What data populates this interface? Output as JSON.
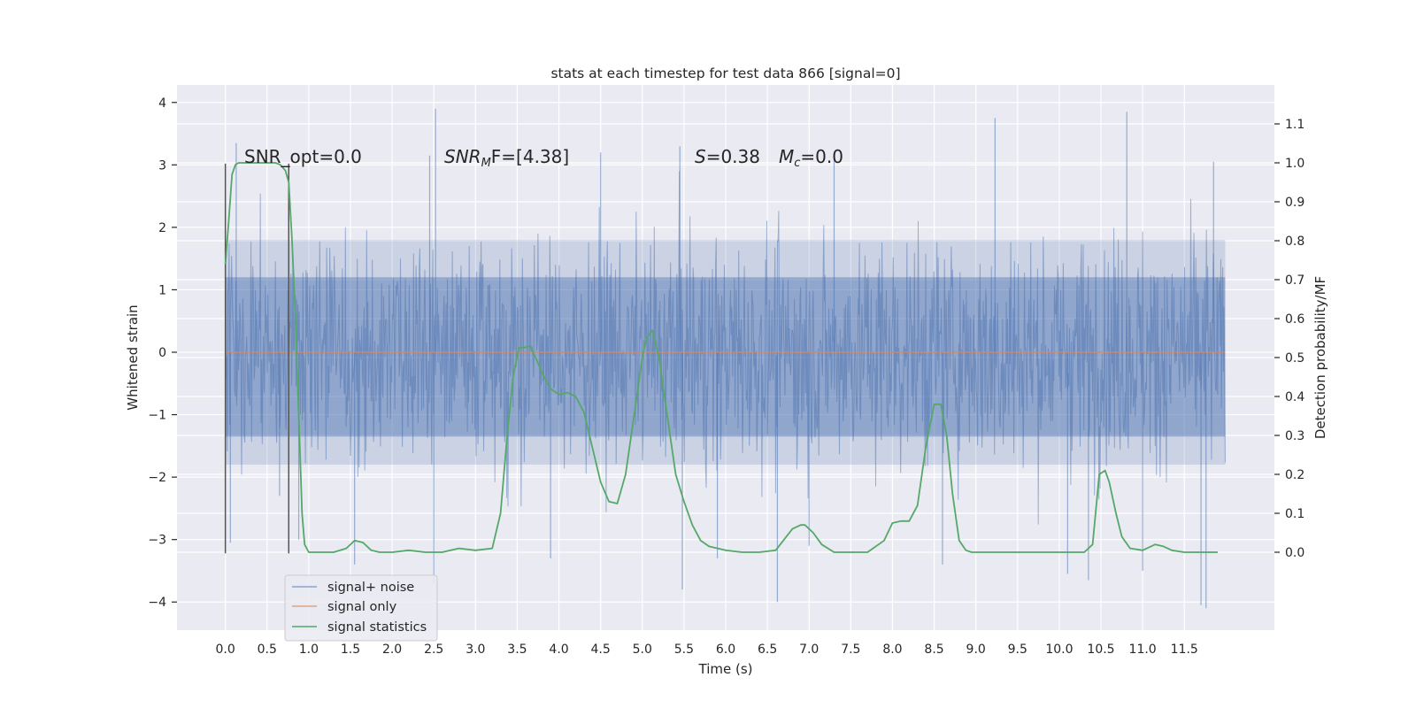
{
  "chart_data": {
    "type": "line",
    "title": "stats at each timestep for test data 866 [signal=0]",
    "xlabel": "Time (s)",
    "ylabel_left": "Whitened strain",
    "ylabel_right": "Detection probability/MF",
    "xlim": [
      -0.58,
      12.58
    ],
    "ylim_left": [
      -4.45,
      4.28
    ],
    "ylim_right": [
      -0.2,
      1.2
    ],
    "x_ticks": [
      "0.0",
      "0.5",
      "1.0",
      "1.5",
      "2.0",
      "2.5",
      "3.0",
      "3.5",
      "4.0",
      "4.5",
      "5.0",
      "5.5",
      "6.0",
      "6.5",
      "7.0",
      "7.5",
      "8.0",
      "8.5",
      "9.0",
      "9.5",
      "10.0",
      "10.5",
      "11.0",
      "11.5"
    ],
    "y_ticks_left": [
      "4",
      "3",
      "2",
      "1",
      "0",
      "−1",
      "−2",
      "−3",
      "−4"
    ],
    "y_ticks_right": [
      "1.1",
      "1.0",
      "0.9",
      "0.8",
      "0.7",
      "0.6",
      "0.5",
      "0.4",
      "0.3",
      "0.2",
      "0.1",
      "0.0"
    ],
    "grid": true,
    "legend_position": "lower-left",
    "annotations": {
      "snr_opt": "SNR_opt=0.0",
      "snr_mf_var": "SNR",
      "snr_mf_sub": "M",
      "snr_mf_rest": "F=[4.38]",
      "s_var": "S",
      "s_rest": "=0.38",
      "mc_var": "M",
      "mc_sub": "c",
      "mc_rest": "=0.0"
    },
    "vertical_markers": [
      0.0,
      0.76
    ],
    "series": [
      {
        "name": "signal+ noise",
        "color": "#4c72b0",
        "axis": "left",
        "description_only": false,
        "x_range": [
          0.0,
          11.99
        ],
        "envelope_core": [
          -1.35,
          1.2
        ],
        "typical_extremes": [
          -2.9,
          2.9
        ],
        "peak_samples": [
          [
            0.06,
            -3.05
          ],
          [
            0.13,
            3.35
          ],
          [
            0.65,
            -2.3
          ],
          [
            0.88,
            -3.0
          ],
          [
            1.55,
            -3.4
          ],
          [
            2.45,
            3.15
          ],
          [
            2.52,
            3.9
          ],
          [
            2.5,
            -3.7
          ],
          [
            3.9,
            -3.3
          ],
          [
            4.5,
            3.2
          ],
          [
            5.45,
            3.3
          ],
          [
            5.48,
            -3.8
          ],
          [
            5.9,
            -3.3
          ],
          [
            6.62,
            -4.0
          ],
          [
            7.0,
            -3.1
          ],
          [
            7.3,
            3.1
          ],
          [
            8.6,
            -3.4
          ],
          [
            9.23,
            3.75
          ],
          [
            10.1,
            -3.55
          ],
          [
            10.35,
            -3.65
          ],
          [
            10.81,
            3.85
          ],
          [
            11.0,
            -3.5
          ],
          [
            11.7,
            -4.05
          ],
          [
            11.76,
            -4.1
          ],
          [
            11.85,
            3.05
          ]
        ]
      },
      {
        "name": "signal only",
        "color": "#dd8452",
        "axis": "left",
        "x": [
          0.0,
          11.99
        ],
        "y": [
          0.0,
          0.0
        ]
      },
      {
        "name": "signal statistics",
        "color": "#55a868",
        "axis": "right",
        "x": [
          0.0,
          0.04,
          0.08,
          0.12,
          0.16,
          0.22,
          0.3,
          0.4,
          0.5,
          0.6,
          0.66,
          0.72,
          0.76,
          0.8,
          0.84,
          0.88,
          0.92,
          0.95,
          1.0,
          1.1,
          1.3,
          1.45,
          1.55,
          1.65,
          1.75,
          1.85,
          2.0,
          2.2,
          2.4,
          2.6,
          2.8,
          3.0,
          3.2,
          3.3,
          3.38,
          3.45,
          3.52,
          3.58,
          3.65,
          3.72,
          3.8,
          3.9,
          4.0,
          4.1,
          4.2,
          4.3,
          4.4,
          4.5,
          4.6,
          4.7,
          4.8,
          4.9,
          5.0,
          5.05,
          5.12,
          5.2,
          5.3,
          5.4,
          5.5,
          5.6,
          5.7,
          5.8,
          6.0,
          6.2,
          6.4,
          6.6,
          6.8,
          6.9,
          6.95,
          7.05,
          7.15,
          7.3,
          7.5,
          7.7,
          7.9,
          8.0,
          8.1,
          8.2,
          8.3,
          8.4,
          8.5,
          8.58,
          8.65,
          8.72,
          8.8,
          8.88,
          8.95,
          9.1,
          9.5,
          10.0,
          10.3,
          10.4,
          10.48,
          10.55,
          10.6,
          10.68,
          10.75,
          10.85,
          11.0,
          11.15,
          11.25,
          11.35,
          11.5,
          11.8,
          11.9
        ],
        "y": [
          0.74,
          0.85,
          0.97,
          0.995,
          1.0,
          1.0,
          1.0,
          1.0,
          1.0,
          1.0,
          0.995,
          0.98,
          0.95,
          0.8,
          0.6,
          0.35,
          0.1,
          0.02,
          0.0,
          0.0,
          0.0,
          0.01,
          0.03,
          0.025,
          0.005,
          0.0,
          0.0,
          0.005,
          0.0,
          0.0,
          0.01,
          0.005,
          0.01,
          0.1,
          0.3,
          0.45,
          0.525,
          0.525,
          0.53,
          0.5,
          0.46,
          0.42,
          0.405,
          0.41,
          0.4,
          0.36,
          0.27,
          0.18,
          0.13,
          0.125,
          0.2,
          0.35,
          0.5,
          0.55,
          0.57,
          0.5,
          0.35,
          0.2,
          0.13,
          0.07,
          0.03,
          0.015,
          0.005,
          0.0,
          0.0,
          0.005,
          0.06,
          0.07,
          0.07,
          0.05,
          0.02,
          0.0,
          0.0,
          0.0,
          0.03,
          0.075,
          0.08,
          0.08,
          0.12,
          0.27,
          0.38,
          0.38,
          0.3,
          0.15,
          0.03,
          0.005,
          0.0,
          0.0,
          0.0,
          0.0,
          0.0,
          0.02,
          0.2,
          0.21,
          0.18,
          0.1,
          0.04,
          0.01,
          0.005,
          0.02,
          0.015,
          0.005,
          0.0,
          0.0,
          0.0
        ]
      }
    ]
  }
}
